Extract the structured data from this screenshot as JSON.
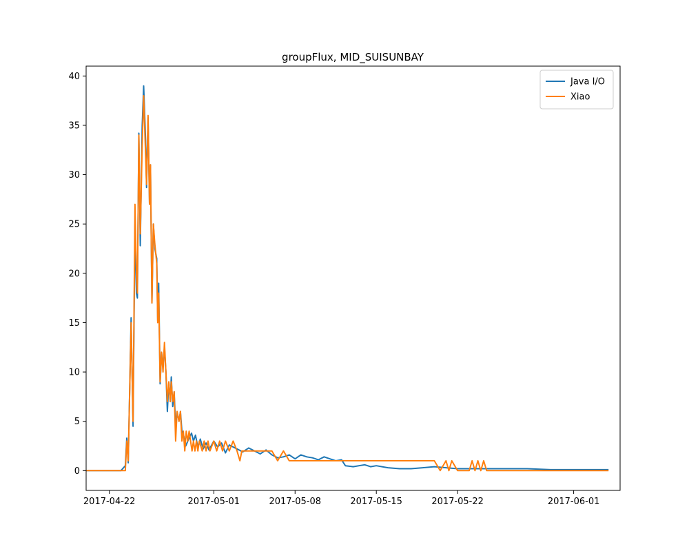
{
  "chart_data": {
    "type": "line",
    "title": "groupFlux, MID_SUISUNBAY",
    "xlabel": "",
    "ylabel": "",
    "x_axis_type": "date",
    "xlim": [
      "2017-04-20T00:00",
      "2017-06-05T00:00"
    ],
    "ylim": [
      -2,
      41
    ],
    "x_ticks": [
      "2017-04-22",
      "2017-05-01",
      "2017-05-08",
      "2017-05-15",
      "2017-05-22",
      "2017-06-01"
    ],
    "y_ticks": [
      0,
      5,
      10,
      15,
      20,
      25,
      30,
      35,
      40
    ],
    "grid": false,
    "legend_position": "top-right",
    "series": [
      {
        "name": "Java I/O",
        "color": "#1f77b4",
        "points": [
          [
            "2017-04-20T00:00",
            0
          ],
          [
            "2017-04-22T12:00",
            0
          ],
          [
            "2017-04-23T00:00",
            0
          ],
          [
            "2017-04-23T09:00",
            0.5
          ],
          [
            "2017-04-23T12:00",
            3.3
          ],
          [
            "2017-04-23T15:00",
            0.8
          ],
          [
            "2017-04-23T21:00",
            15.5
          ],
          [
            "2017-04-24T01:00",
            4.5
          ],
          [
            "2017-04-24T05:00",
            25
          ],
          [
            "2017-04-24T08:00",
            18
          ],
          [
            "2017-04-24T10:00",
            17.5
          ],
          [
            "2017-04-24T13:00",
            34.2
          ],
          [
            "2017-04-24T16:00",
            22.8
          ],
          [
            "2017-04-24T20:00",
            35
          ],
          [
            "2017-04-24T23:00",
            39
          ],
          [
            "2017-04-25T03:00",
            33.5
          ],
          [
            "2017-04-25T05:00",
            28.7
          ],
          [
            "2017-04-25T08:00",
            35.8
          ],
          [
            "2017-04-25T11:00",
            27
          ],
          [
            "2017-04-25T13:00",
            31
          ],
          [
            "2017-04-25T16:00",
            17
          ],
          [
            "2017-04-25T19:00",
            25
          ],
          [
            "2017-04-25T22:00",
            22.5
          ],
          [
            "2017-04-26T02:00",
            21.5
          ],
          [
            "2017-04-26T04:00",
            15.2
          ],
          [
            "2017-04-26T06:00",
            19
          ],
          [
            "2017-04-26T09:00",
            8.8
          ],
          [
            "2017-04-26T12:00",
            12
          ],
          [
            "2017-04-26T15:00",
            10.5
          ],
          [
            "2017-04-26T18:00",
            12.5
          ],
          [
            "2017-04-26T21:00",
            10
          ],
          [
            "2017-04-27T00:00",
            6
          ],
          [
            "2017-04-27T03:00",
            9
          ],
          [
            "2017-04-27T06:00",
            7
          ],
          [
            "2017-04-27T08:00",
            9.5
          ],
          [
            "2017-04-27T11:00",
            6.5
          ],
          [
            "2017-04-27T14:00",
            8
          ],
          [
            "2017-04-27T17:00",
            4.5
          ],
          [
            "2017-04-27T20:00",
            6
          ],
          [
            "2017-04-28T00:00",
            5
          ],
          [
            "2017-04-28T03:00",
            6
          ],
          [
            "2017-04-28T06:00",
            4
          ],
          [
            "2017-04-28T10:00",
            3.5
          ],
          [
            "2017-04-28T14:00",
            2.5
          ],
          [
            "2017-04-28T20:00",
            3.2
          ],
          [
            "2017-04-29T02:00",
            3.8
          ],
          [
            "2017-04-29T06:00",
            3
          ],
          [
            "2017-04-29T10:00",
            3.6
          ],
          [
            "2017-04-29T15:00",
            2.4
          ],
          [
            "2017-04-29T20:00",
            3.2
          ],
          [
            "2017-04-30T02:00",
            2.2
          ],
          [
            "2017-04-30T08:00",
            2.8
          ],
          [
            "2017-04-30T14:00",
            2.1
          ],
          [
            "2017-05-01T00:00",
            3
          ],
          [
            "2017-05-01T08:00",
            2.4
          ],
          [
            "2017-05-01T16:00",
            2.8
          ],
          [
            "2017-05-02T00:00",
            1.8
          ],
          [
            "2017-05-02T08:00",
            2.6
          ],
          [
            "2017-05-03T00:00",
            2.2
          ],
          [
            "2017-05-03T12:00",
            1.9
          ],
          [
            "2017-05-04T00:00",
            2.3
          ],
          [
            "2017-05-05T00:00",
            1.7
          ],
          [
            "2017-05-05T12:00",
            2.1
          ],
          [
            "2017-05-06T00:00",
            1.6
          ],
          [
            "2017-05-06T12:00",
            1.3
          ],
          [
            "2017-05-07T00:00",
            1.4
          ],
          [
            "2017-05-07T12:00",
            1.6
          ],
          [
            "2017-05-08T00:00",
            1.2
          ],
          [
            "2017-05-08T12:00",
            1.6
          ],
          [
            "2017-05-09T00:00",
            1.4
          ],
          [
            "2017-05-09T12:00",
            1.3
          ],
          [
            "2017-05-10T00:00",
            1.1
          ],
          [
            "2017-05-10T12:00",
            1.4
          ],
          [
            "2017-05-11T00:00",
            1.2
          ],
          [
            "2017-05-11T12:00",
            1
          ],
          [
            "2017-05-12T00:00",
            1.1
          ],
          [
            "2017-05-12T08:00",
            0.5
          ],
          [
            "2017-05-13T00:00",
            0.4
          ],
          [
            "2017-05-14T00:00",
            0.6
          ],
          [
            "2017-05-14T12:00",
            0.4
          ],
          [
            "2017-05-15T00:00",
            0.5
          ],
          [
            "2017-05-16T00:00",
            0.3
          ],
          [
            "2017-05-17T00:00",
            0.2
          ],
          [
            "2017-05-18T00:00",
            0.2
          ],
          [
            "2017-05-19T00:00",
            0.3
          ],
          [
            "2017-05-20T00:00",
            0.4
          ],
          [
            "2017-05-21T00:00",
            0.3
          ],
          [
            "2017-05-22T00:00",
            0.2
          ],
          [
            "2017-05-24T00:00",
            0.2
          ],
          [
            "2017-05-26T00:00",
            0.2
          ],
          [
            "2017-05-28T00:00",
            0.2
          ],
          [
            "2017-05-30T00:00",
            0.1
          ],
          [
            "2017-06-01T00:00",
            0.1
          ],
          [
            "2017-06-03T00:00",
            0.1
          ],
          [
            "2017-06-04T00:00",
            0.1
          ]
        ]
      },
      {
        "name": "Xiao",
        "color": "#ff7f0e",
        "points": [
          [
            "2017-04-20T00:00",
            0
          ],
          [
            "2017-04-23T09:00",
            0
          ],
          [
            "2017-04-23T12:00",
            3
          ],
          [
            "2017-04-23T15:00",
            1
          ],
          [
            "2017-04-23T21:00",
            15
          ],
          [
            "2017-04-24T01:00",
            5
          ],
          [
            "2017-04-24T05:00",
            27
          ],
          [
            "2017-04-24T08:00",
            20
          ],
          [
            "2017-04-24T10:00",
            18
          ],
          [
            "2017-04-24T13:00",
            34
          ],
          [
            "2017-04-24T16:00",
            24
          ],
          [
            "2017-04-24T20:00",
            33
          ],
          [
            "2017-04-24T23:00",
            38
          ],
          [
            "2017-04-25T03:00",
            32
          ],
          [
            "2017-04-25T05:00",
            29
          ],
          [
            "2017-04-25T08:00",
            36
          ],
          [
            "2017-04-25T11:00",
            27
          ],
          [
            "2017-04-25T13:00",
            31
          ],
          [
            "2017-04-25T16:00",
            17
          ],
          [
            "2017-04-25T19:00",
            25
          ],
          [
            "2017-04-25T22:00",
            23
          ],
          [
            "2017-04-26T02:00",
            21
          ],
          [
            "2017-04-26T04:00",
            15
          ],
          [
            "2017-04-26T06:00",
            18
          ],
          [
            "2017-04-26T09:00",
            9
          ],
          [
            "2017-04-26T12:00",
            12
          ],
          [
            "2017-04-26T15:00",
            10
          ],
          [
            "2017-04-26T18:00",
            13
          ],
          [
            "2017-04-26T21:00",
            10
          ],
          [
            "2017-04-27T00:00",
            7
          ],
          [
            "2017-04-27T03:00",
            9
          ],
          [
            "2017-04-27T06:00",
            7
          ],
          [
            "2017-04-27T08:00",
            9
          ],
          [
            "2017-04-27T11:00",
            7
          ],
          [
            "2017-04-27T14:00",
            8
          ],
          [
            "2017-04-27T17:00",
            3
          ],
          [
            "2017-04-27T20:00",
            6
          ],
          [
            "2017-04-28T00:00",
            5
          ],
          [
            "2017-04-28T03:00",
            6
          ],
          [
            "2017-04-28T06:00",
            3
          ],
          [
            "2017-04-28T09:00",
            4
          ],
          [
            "2017-04-28T12:00",
            2
          ],
          [
            "2017-04-28T15:00",
            4
          ],
          [
            "2017-04-28T18:00",
            3
          ],
          [
            "2017-04-28T21:00",
            4
          ],
          [
            "2017-04-29T00:00",
            3
          ],
          [
            "2017-04-29T03:00",
            2
          ],
          [
            "2017-04-29T06:00",
            3
          ],
          [
            "2017-04-29T09:00",
            2
          ],
          [
            "2017-04-29T12:00",
            3
          ],
          [
            "2017-04-29T15:00",
            2
          ],
          [
            "2017-04-29T18:00",
            3
          ],
          [
            "2017-04-30T00:00",
            2
          ],
          [
            "2017-04-30T04:00",
            3
          ],
          [
            "2017-04-30T08:00",
            2
          ],
          [
            "2017-04-30T12:00",
            3
          ],
          [
            "2017-04-30T16:00",
            2
          ],
          [
            "2017-05-01T00:00",
            3
          ],
          [
            "2017-05-01T06:00",
            2
          ],
          [
            "2017-05-01T12:00",
            3
          ],
          [
            "2017-05-01T18:00",
            2
          ],
          [
            "2017-05-02T00:00",
            3
          ],
          [
            "2017-05-02T08:00",
            2
          ],
          [
            "2017-05-02T16:00",
            3
          ],
          [
            "2017-05-03T00:00",
            2
          ],
          [
            "2017-05-03T06:00",
            1
          ],
          [
            "2017-05-03T10:00",
            2
          ],
          [
            "2017-05-04T00:00",
            2
          ],
          [
            "2017-05-05T00:00",
            2
          ],
          [
            "2017-05-06T00:00",
            2
          ],
          [
            "2017-05-06T12:00",
            1
          ],
          [
            "2017-05-07T00:00",
            2
          ],
          [
            "2017-05-07T12:00",
            1
          ],
          [
            "2017-05-08T00:00",
            1
          ],
          [
            "2017-05-12T00:00",
            1
          ],
          [
            "2017-05-16T00:00",
            1
          ],
          [
            "2017-05-20T00:00",
            1
          ],
          [
            "2017-05-20T12:00",
            0
          ],
          [
            "2017-05-21T00:00",
            1
          ],
          [
            "2017-05-21T06:00",
            0
          ],
          [
            "2017-05-21T12:00",
            1
          ],
          [
            "2017-05-22T00:00",
            0
          ],
          [
            "2017-05-23T00:00",
            0
          ],
          [
            "2017-05-23T06:00",
            1
          ],
          [
            "2017-05-23T12:00",
            0
          ],
          [
            "2017-05-23T18:00",
            1
          ],
          [
            "2017-05-24T00:00",
            0
          ],
          [
            "2017-05-24T06:00",
            1
          ],
          [
            "2017-05-24T12:00",
            0
          ],
          [
            "2017-05-26T00:00",
            0
          ],
          [
            "2017-06-01T00:00",
            0
          ],
          [
            "2017-06-04T00:00",
            0
          ]
        ]
      }
    ]
  }
}
